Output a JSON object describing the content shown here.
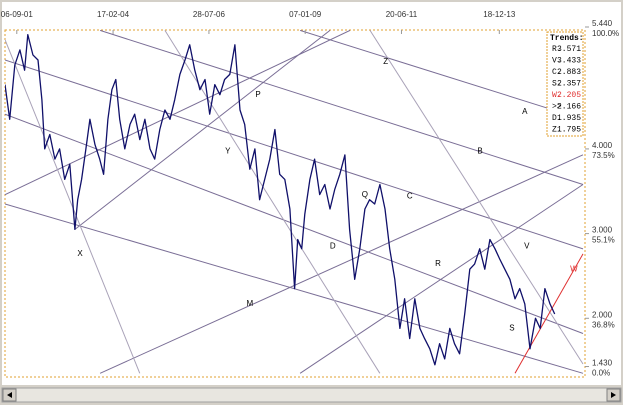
{
  "chart_data": {
    "type": "line",
    "color": "#10106a",
    "x": [
      2001.38,
      2001.5,
      2001.63,
      2001.76,
      2001.88,
      2001.96,
      2002.09,
      2002.22,
      2002.32,
      2002.39,
      2002.52,
      2002.65,
      2002.77,
      2002.9,
      2003.03,
      2003.16,
      2003.23,
      2003.33,
      2003.44,
      2003.54,
      2003.67,
      2003.79,
      2003.89,
      2004.0,
      2004.1,
      2004.2,
      2004.3,
      2004.43,
      2004.56,
      2004.68,
      2004.81,
      2004.94,
      2005.07,
      2005.19,
      2005.32,
      2005.45,
      2005.58,
      2005.7,
      2005.83,
      2005.96,
      2006.08,
      2006.21,
      2006.34,
      2006.47,
      2006.59,
      2006.72,
      2006.85,
      2006.97,
      2007.1,
      2007.23,
      2007.36,
      2007.48,
      2007.61,
      2007.74,
      2007.86,
      2007.99,
      2008.12,
      2008.25,
      2008.37,
      2008.5,
      2008.63,
      2008.75,
      2008.83,
      2008.93,
      2009.01,
      2009.14,
      2009.26,
      2009.39,
      2009.52,
      2009.65,
      2009.77,
      2009.9,
      2010.03,
      2010.15,
      2010.28,
      2010.41,
      2010.54,
      2010.66,
      2010.79,
      2010.92,
      2011.05,
      2011.17,
      2011.3,
      2011.43,
      2011.55,
      2011.68,
      2011.81,
      2011.94,
      2012.06,
      2012.19,
      2012.32,
      2012.44,
      2012.57,
      2012.7,
      2012.82,
      2012.95,
      2013.08,
      2013.21,
      2013.33,
      2013.46,
      2013.59,
      2013.72,
      2013.85,
      2013.97,
      2014.1,
      2014.23,
      2014.36,
      2014.48,
      2014.61,
      2014.74,
      2014.88,
      2015.0,
      2015.12,
      2015.25,
      2015.37
    ],
    "values": [
      4.76,
      4.35,
      4.99,
      5.17,
      4.93,
      5.35,
      5.11,
      5.05,
      4.58,
      4.0,
      4.17,
      3.88,
      4.0,
      3.64,
      3.82,
      3.05,
      3.4,
      3.64,
      4.0,
      4.35,
      4.05,
      3.88,
      3.7,
      4.35,
      4.7,
      4.82,
      4.35,
      4.0,
      4.29,
      4.41,
      4.11,
      4.35,
      4.0,
      3.88,
      4.23,
      4.46,
      4.35,
      4.58,
      4.88,
      5.05,
      5.23,
      4.93,
      4.7,
      4.82,
      4.41,
      4.76,
      4.64,
      4.82,
      4.88,
      5.23,
      4.46,
      4.29,
      3.76,
      4.0,
      3.4,
      3.64,
      3.88,
      4.23,
      3.7,
      3.64,
      3.29,
      2.35,
      2.93,
      2.82,
      3.23,
      3.64,
      3.88,
      3.46,
      3.58,
      3.29,
      3.52,
      3.7,
      3.93,
      3.05,
      2.46,
      2.82,
      3.29,
      3.4,
      3.35,
      3.58,
      3.29,
      2.82,
      2.46,
      1.88,
      2.23,
      1.76,
      2.23,
      1.88,
      1.76,
      1.64,
      1.45,
      1.7,
      1.52,
      1.88,
      1.7,
      1.58,
      2.05,
      2.58,
      2.64,
      2.82,
      2.58,
      2.93,
      2.82,
      2.7,
      2.58,
      2.46,
      2.23,
      2.35,
      2.17,
      1.64,
      2.0,
      1.88,
      2.35,
      2.17,
      2.05
    ],
    "xlim": [
      2001.38,
      2016.09
    ],
    "xticks": [
      {
        "value": 2001.68,
        "label": "06-09-01"
      },
      {
        "value": 2004.13,
        "label": "17-02-04"
      },
      {
        "value": 2006.57,
        "label": "28-07-06"
      },
      {
        "value": 2009.02,
        "label": "07-01-09"
      },
      {
        "value": 2011.47,
        "label": "20-06-11"
      },
      {
        "value": 2013.96,
        "label": "18-12-13"
      }
    ],
    "ylim": [
      1.33,
      5.44
    ],
    "yticks": [
      {
        "value": 5.44,
        "label": "5.440"
      },
      {
        "value": 4,
        "label": "4.000"
      },
      {
        "value": 3,
        "label": "3.000"
      },
      {
        "value": 2,
        "label": "2.000"
      },
      {
        "value": 1.43,
        "label": "1.430"
      }
    ],
    "y2ticks": [
      {
        "value": 100,
        "label": "100.0%"
      },
      {
        "value": 73.5,
        "label": "73.5%"
      },
      {
        "value": 55.1,
        "label": "55.1%"
      },
      {
        "value": 36.8,
        "label": "36.8%"
      },
      {
        "value": 0,
        "label": "0.0%"
      }
    ],
    "trend_lines": [
      {
        "points": [
          [
            2003.8,
            5.4
          ],
          [
            2016.09,
            3.58
          ]
        ],
        "color": "#7a6e96"
      },
      {
        "points": [
          [
            2001.38,
            4.41
          ],
          [
            2016.09,
            1.82
          ]
        ],
        "color": "#7a6e96"
      },
      {
        "points": [
          [
            2001.38,
            3.35
          ],
          [
            2016.09,
            1.35
          ]
        ],
        "color": "#7a6e96"
      },
      {
        "points": [
          [
            2008.89,
            5.4
          ],
          [
            2016.09,
            4.35
          ]
        ],
        "color": "#7a6e96"
      },
      {
        "points": [
          [
            2001.38,
            5.05
          ],
          [
            2016.09,
            2.82
          ]
        ],
        "color": "#7a6e96"
      },
      {
        "points": [
          [
            2003.16,
            3.05
          ],
          [
            2009.65,
            5.4
          ]
        ],
        "color": "#7a6e96"
      },
      {
        "points": [
          [
            2003.8,
            1.35
          ],
          [
            2016.09,
            3.93
          ]
        ],
        "color": "#7a6e96"
      },
      {
        "points": [
          [
            2008.89,
            1.35
          ],
          [
            2016.09,
            3.58
          ]
        ],
        "color": "#7a6e96"
      },
      {
        "points": [
          [
            2001.38,
            3.46
          ],
          [
            2010.16,
            5.4
          ]
        ],
        "color": "#7a6e96"
      },
      {
        "points": [
          [
            2005.45,
            5.4
          ],
          [
            2010.92,
            1.35
          ]
        ],
        "color": "#a9a2b8"
      },
      {
        "points": [
          [
            2010.67,
            5.4
          ],
          [
            2016.09,
            1.46
          ]
        ],
        "color": "#a9a2b8"
      },
      {
        "points": [
          [
            2001.38,
            5.29
          ],
          [
            2004.81,
            1.35
          ]
        ],
        "color": "#a9a2b8"
      },
      {
        "points": [
          [
            2014.36,
            1.35
          ],
          [
            2016.09,
            2.76
          ]
        ],
        "color": "#e03030"
      }
    ],
    "annotations": [
      {
        "text": "P",
        "x": 2007.82,
        "y": 4.64,
        "color": "#000000"
      },
      {
        "text": "Y",
        "x": 2007.05,
        "y": 3.97,
        "color": "#000000"
      },
      {
        "text": "Z",
        "x": 2011.07,
        "y": 5.03,
        "color": "#000000"
      },
      {
        "text": "A",
        "x": 2014.61,
        "y": 4.44,
        "color": "#000000"
      },
      {
        "text": "B",
        "x": 2013.47,
        "y": 3.97,
        "color": "#000000"
      },
      {
        "text": "C",
        "x": 2011.68,
        "y": 3.44,
        "color": "#000000"
      },
      {
        "text": "D",
        "x": 2009.72,
        "y": 2.85,
        "color": "#000000"
      },
      {
        "text": "Q",
        "x": 2010.54,
        "y": 3.46,
        "color": "#000000"
      },
      {
        "text": "R",
        "x": 2012.4,
        "y": 2.64,
        "color": "#000000"
      },
      {
        "text": "V",
        "x": 2014.66,
        "y": 2.85,
        "color": "#000000"
      },
      {
        "text": "W",
        "x": 2015.86,
        "y": 2.58,
        "color": "#e03030"
      },
      {
        "text": "X",
        "x": 2003.29,
        "y": 2.76,
        "color": "#000000"
      },
      {
        "text": "M",
        "x": 2007.61,
        "y": 2.17,
        "color": "#000000"
      },
      {
        "text": "S",
        "x": 2014.28,
        "y": 1.88,
        "color": "#000000"
      }
    ],
    "legend": {
      "title": "Trends:",
      "corner": "upper right",
      "items": [
        {
          "name": "R.",
          "value": 3.571,
          "color": "#000000"
        },
        {
          "name": "V.",
          "value": 3.433,
          "color": "#000000"
        },
        {
          "name": "C.",
          "value": 2.883,
          "color": "#000000"
        },
        {
          "name": "S.",
          "value": 2.357,
          "color": "#000000"
        },
        {
          "name": "W.",
          "value": 2.205,
          "color": "#e03030"
        },
        {
          "name": ">>",
          "value": 2.166,
          "color": "#000000"
        },
        {
          "name": "D.",
          "value": 1.935,
          "color": "#000000"
        },
        {
          "name": "Z.",
          "value": 1.795,
          "color": "#000000"
        }
      ]
    }
  }
}
